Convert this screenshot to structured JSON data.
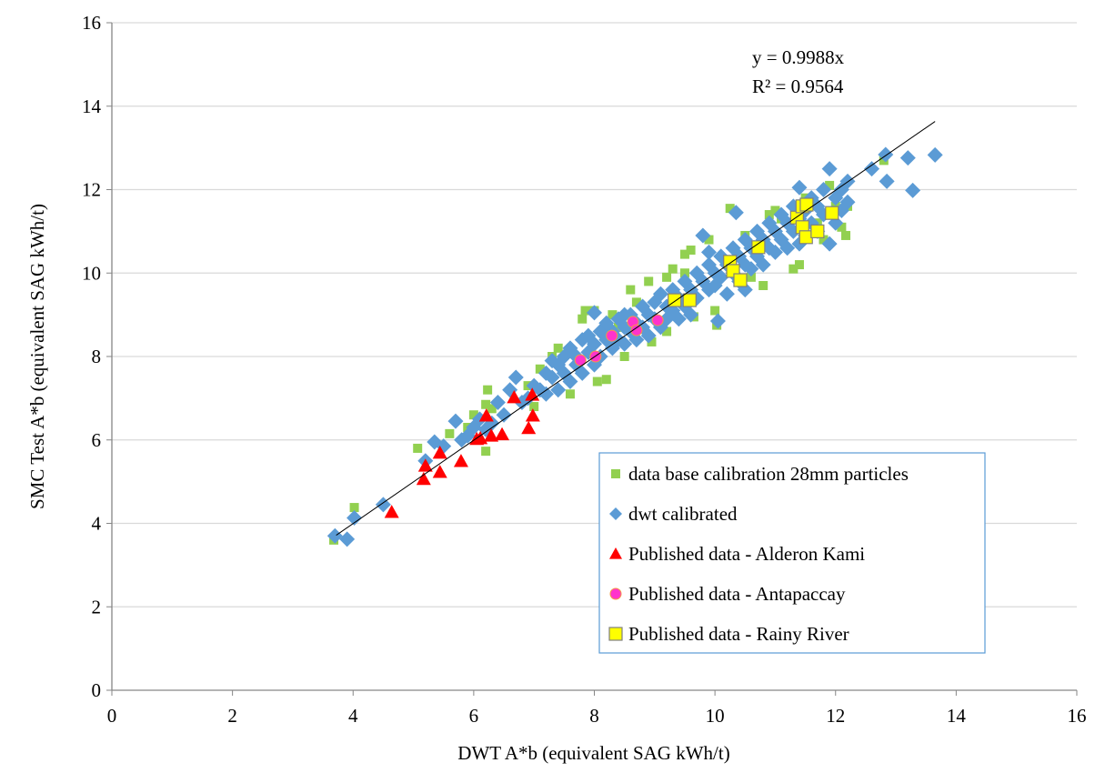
{
  "chart_data": {
    "type": "scatter",
    "xlabel": "DWT A*b (equivalent SAG kWh/t)",
    "ylabel": "SMC Test A*b (equivalent SAG kWh/t)",
    "xlim": [
      0,
      16
    ],
    "ylim": [
      0,
      16
    ],
    "xticks": [
      "0",
      "2",
      "4",
      "6",
      "8",
      "10",
      "12",
      "14",
      "16"
    ],
    "yticks": [
      "0",
      "2",
      "4",
      "6",
      "8",
      "10",
      "12",
      "14",
      "16"
    ],
    "grid": "horizontal major",
    "legend_position": "bottom-right",
    "trendline": {
      "slope": 0.9988,
      "x_range": [
        3.72,
        13.65
      ],
      "equation_label": "y = 0.9988x",
      "r2_label": "R² = 0.9564",
      "color": "#000000"
    },
    "series": [
      {
        "name": "data base calibration 28mm particles",
        "marker": "square",
        "color": "#92d050",
        "points": [
          [
            3.68,
            3.6
          ],
          [
            4.02,
            4.38
          ],
          [
            5.07,
            5.8
          ],
          [
            5.6,
            6.15
          ],
          [
            5.9,
            6.3
          ],
          [
            6.0,
            6.6
          ],
          [
            6.2,
            6.85
          ],
          [
            6.2,
            5.73
          ],
          [
            6.3,
            6.75
          ],
          [
            6.23,
            7.2
          ],
          [
            6.9,
            7.3
          ],
          [
            7.1,
            7.7
          ],
          [
            7.3,
            8.0
          ],
          [
            7.4,
            8.2
          ],
          [
            7.6,
            7.1
          ],
          [
            7.8,
            8.9
          ],
          [
            7.85,
            9.1
          ],
          [
            8.0,
            9.1
          ],
          [
            8.05,
            7.4
          ],
          [
            8.2,
            7.45
          ],
          [
            8.3,
            9.0
          ],
          [
            8.5,
            8.0
          ],
          [
            8.6,
            9.6
          ],
          [
            8.7,
            9.3
          ],
          [
            8.9,
            9.8
          ],
          [
            8.95,
            8.35
          ],
          [
            9.2,
            9.9
          ],
          [
            9.3,
            10.1
          ],
          [
            9.5,
            10.0
          ],
          [
            9.6,
            10.55
          ],
          [
            9.5,
            10.45
          ],
          [
            9.65,
            8.95
          ],
          [
            9.9,
            10.8
          ],
          [
            10.03,
            8.75
          ],
          [
            10.0,
            9.1
          ],
          [
            10.25,
            11.55
          ],
          [
            10.5,
            10.9
          ],
          [
            10.8,
            9.7
          ],
          [
            10.9,
            11.4
          ],
          [
            11.0,
            11.5
          ],
          [
            11.1,
            11.3
          ],
          [
            11.3,
            10.1
          ],
          [
            11.4,
            10.2
          ],
          [
            11.5,
            11.8
          ],
          [
            11.7,
            11.2
          ],
          [
            11.8,
            10.8
          ],
          [
            11.9,
            12.1
          ],
          [
            12.0,
            11.6
          ],
          [
            12.1,
            11.1
          ],
          [
            12.17,
            10.9
          ],
          [
            12.2,
            11.6
          ],
          [
            12.8,
            12.7
          ],
          [
            10.6,
            9.9
          ],
          [
            9.2,
            8.6
          ],
          [
            8.4,
            8.7
          ],
          [
            7.0,
            6.8
          ]
        ]
      },
      {
        "name": "dwt calibrated",
        "marker": "diamond",
        "color": "#5b9bd5",
        "points": [
          [
            3.7,
            3.7
          ],
          [
            3.9,
            3.62
          ],
          [
            4.02,
            4.13
          ],
          [
            4.5,
            4.45
          ],
          [
            5.2,
            5.5
          ],
          [
            5.35,
            5.95
          ],
          [
            5.5,
            5.85
          ],
          [
            5.7,
            6.45
          ],
          [
            5.8,
            6.0
          ],
          [
            5.9,
            6.1
          ],
          [
            6.0,
            6.3
          ],
          [
            6.1,
            6.5
          ],
          [
            6.2,
            6.25
          ],
          [
            6.3,
            6.4
          ],
          [
            6.4,
            6.9
          ],
          [
            6.5,
            6.6
          ],
          [
            6.6,
            7.2
          ],
          [
            6.7,
            7.5
          ],
          [
            6.8,
            6.9
          ],
          [
            6.9,
            7.0
          ],
          [
            7.0,
            7.3
          ],
          [
            7.1,
            7.2
          ],
          [
            7.2,
            7.6
          ],
          [
            7.3,
            7.5
          ],
          [
            7.4,
            7.8
          ],
          [
            7.4,
            7.2
          ],
          [
            7.5,
            8.0
          ],
          [
            7.5,
            7.6
          ],
          [
            7.6,
            8.2
          ],
          [
            7.6,
            7.4
          ],
          [
            7.7,
            8.0
          ],
          [
            7.7,
            7.8
          ],
          [
            7.8,
            8.4
          ],
          [
            7.8,
            7.6
          ],
          [
            7.9,
            8.1
          ],
          [
            7.9,
            8.5
          ],
          [
            8.0,
            8.3
          ],
          [
            8.0,
            7.8
          ],
          [
            8.0,
            9.05
          ],
          [
            8.1,
            8.6
          ],
          [
            8.1,
            8.0
          ],
          [
            8.2,
            8.4
          ],
          [
            8.2,
            8.8
          ],
          [
            8.3,
            8.2
          ],
          [
            8.3,
            8.6
          ],
          [
            8.4,
            8.9
          ],
          [
            8.4,
            8.4
          ],
          [
            8.5,
            8.7
          ],
          [
            8.5,
            8.3
          ],
          [
            8.6,
            9.0
          ],
          [
            8.6,
            8.6
          ],
          [
            8.7,
            8.8
          ],
          [
            8.7,
            8.4
          ],
          [
            8.8,
            9.2
          ],
          [
            8.8,
            8.7
          ],
          [
            8.9,
            9.0
          ],
          [
            8.9,
            8.5
          ],
          [
            9.0,
            9.3
          ],
          [
            9.0,
            8.9
          ],
          [
            9.1,
            9.5
          ],
          [
            9.1,
            8.7
          ],
          [
            9.2,
            9.2
          ],
          [
            9.2,
            8.9
          ],
          [
            9.3,
            9.6
          ],
          [
            9.3,
            9.1
          ],
          [
            9.4,
            9.4
          ],
          [
            9.4,
            8.9
          ],
          [
            9.5,
            9.8
          ],
          [
            9.5,
            9.2
          ],
          [
            9.6,
            9.6
          ],
          [
            9.6,
            9.0
          ],
          [
            9.7,
            10.0
          ],
          [
            9.7,
            9.4
          ],
          [
            9.8,
            9.8
          ],
          [
            9.8,
            10.9
          ],
          [
            9.9,
            10.2
          ],
          [
            9.9,
            9.6
          ],
          [
            10.0,
            10.0
          ],
          [
            10.0,
            9.7
          ],
          [
            10.05,
            8.85
          ],
          [
            10.1,
            10.4
          ],
          [
            10.1,
            9.9
          ],
          [
            10.2,
            10.2
          ],
          [
            10.2,
            9.5
          ],
          [
            10.3,
            10.6
          ],
          [
            10.3,
            10.0
          ],
          [
            10.35,
            11.45
          ],
          [
            10.4,
            10.4
          ],
          [
            10.4,
            9.8
          ],
          [
            10.5,
            10.8
          ],
          [
            10.5,
            10.2
          ],
          [
            10.5,
            9.6
          ],
          [
            10.6,
            10.6
          ],
          [
            10.6,
            10.1
          ],
          [
            10.7,
            11.0
          ],
          [
            10.7,
            10.4
          ],
          [
            10.8,
            10.8
          ],
          [
            10.8,
            10.2
          ],
          [
            10.9,
            11.2
          ],
          [
            10.9,
            10.6
          ],
          [
            11.0,
            11.0
          ],
          [
            11.0,
            10.5
          ],
          [
            11.1,
            11.4
          ],
          [
            11.1,
            10.8
          ],
          [
            11.2,
            11.2
          ],
          [
            11.2,
            10.6
          ],
          [
            11.3,
            11.6
          ],
          [
            11.3,
            11.0
          ],
          [
            11.4,
            11.3
          ],
          [
            11.4,
            10.7
          ],
          [
            11.4,
            12.05
          ],
          [
            11.5,
            11.5
          ],
          [
            11.5,
            10.9
          ],
          [
            11.6,
            11.8
          ],
          [
            11.6,
            11.2
          ],
          [
            11.7,
            11.6
          ],
          [
            11.7,
            11.0
          ],
          [
            11.8,
            12.0
          ],
          [
            11.8,
            11.4
          ],
          [
            11.9,
            12.5
          ],
          [
            11.9,
            10.7
          ],
          [
            12.0,
            11.8
          ],
          [
            12.0,
            11.2
          ],
          [
            12.1,
            12.0
          ],
          [
            12.1,
            11.5
          ],
          [
            12.2,
            12.2
          ],
          [
            12.2,
            11.7
          ],
          [
            12.6,
            12.5
          ],
          [
            12.83,
            12.84
          ],
          [
            12.85,
            12.2
          ],
          [
            13.2,
            12.76
          ],
          [
            13.28,
            11.98
          ],
          [
            13.65,
            12.83
          ],
          [
            7.2,
            7.1
          ],
          [
            7.3,
            7.9
          ],
          [
            8.5,
            9.0
          ],
          [
            9.9,
            10.5
          ]
        ]
      },
      {
        "name": "Published data - Alderon Kami",
        "marker": "triangle",
        "color": "#ff0000",
        "points": [
          [
            4.64,
            4.27
          ],
          [
            5.17,
            5.06
          ],
          [
            5.2,
            5.38
          ],
          [
            5.44,
            5.23
          ],
          [
            5.44,
            5.69
          ],
          [
            5.79,
            5.49
          ],
          [
            6.05,
            6.02
          ],
          [
            6.11,
            6.04
          ],
          [
            6.29,
            6.1
          ],
          [
            6.47,
            6.13
          ],
          [
            6.21,
            6.58
          ],
          [
            6.67,
            7.02
          ],
          [
            6.97,
            7.08
          ],
          [
            6.98,
            6.58
          ],
          [
            6.91,
            6.28
          ]
        ]
      },
      {
        "name": "Published data - Antapaccay",
        "marker": "circle",
        "color": "#ff33cc",
        "points": [
          [
            7.77,
            7.91
          ],
          [
            8.02,
            8.0
          ],
          [
            8.29,
            8.5
          ],
          [
            8.64,
            8.83
          ],
          [
            8.7,
            8.63
          ],
          [
            9.05,
            8.87
          ]
        ]
      },
      {
        "name": "Published data - Rainy River",
        "marker": "square",
        "color": "#ffff00",
        "points": [
          [
            9.33,
            9.35
          ],
          [
            9.58,
            9.35
          ],
          [
            10.25,
            10.27
          ],
          [
            10.3,
            10.05
          ],
          [
            10.42,
            9.83
          ],
          [
            10.72,
            10.62
          ],
          [
            11.36,
            11.33
          ],
          [
            11.45,
            11.6
          ],
          [
            11.52,
            11.64
          ],
          [
            11.45,
            11.1
          ],
          [
            11.51,
            10.86
          ],
          [
            11.7,
            11.0
          ],
          [
            11.94,
            11.44
          ]
        ]
      }
    ]
  }
}
